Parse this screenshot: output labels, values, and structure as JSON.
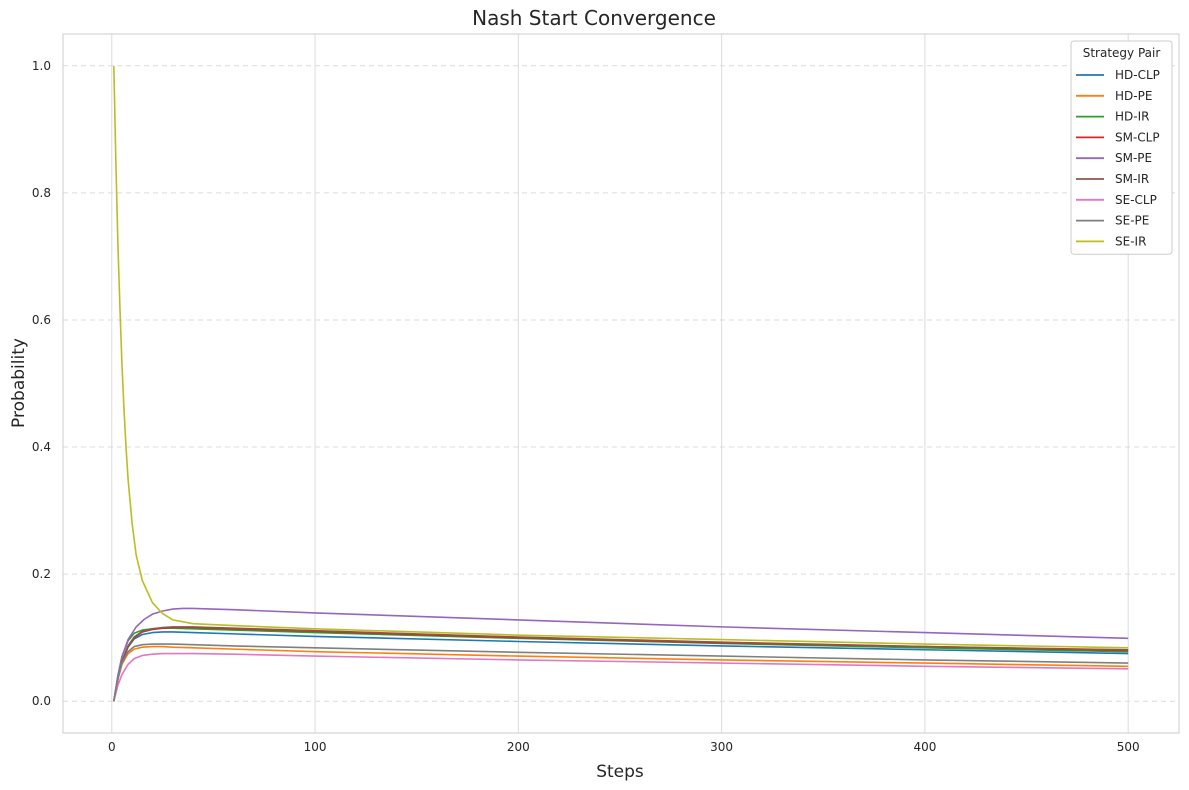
{
  "chart_data": {
    "type": "line",
    "title": "Nash Start Convergence",
    "xlabel": "Steps",
    "ylabel": "Probability",
    "xlim": [
      -24,
      525
    ],
    "ylim": [
      -0.05,
      1.05
    ],
    "xticks": [
      0,
      100,
      200,
      300,
      400,
      500
    ],
    "xtick_labels": [
      "0",
      "100",
      "200",
      "300",
      "400",
      "500"
    ],
    "yticks": [
      0.0,
      0.2,
      0.4,
      0.6,
      0.8,
      1.0
    ],
    "ytick_labels": [
      "0.0",
      "0.2",
      "0.4",
      "0.6",
      "0.8",
      "1.0"
    ],
    "grid": true,
    "legend": {
      "title": "Strategy Pair",
      "placement": "top-right"
    },
    "series": [
      {
        "name": "HD-CLP",
        "color": "#1f77b4",
        "points": [
          [
            1,
            0.0
          ],
          [
            3,
            0.035
          ],
          [
            5,
            0.062
          ],
          [
            8,
            0.085
          ],
          [
            11,
            0.098
          ],
          [
            15,
            0.105
          ],
          [
            20,
            0.108
          ],
          [
            25,
            0.109
          ],
          [
            30,
            0.109
          ],
          [
            40,
            0.108
          ],
          [
            60,
            0.106
          ],
          [
            100,
            0.102
          ],
          [
            200,
            0.094
          ],
          [
            300,
            0.087
          ],
          [
            400,
            0.081
          ],
          [
            500,
            0.075
          ]
        ]
      },
      {
        "name": "HD-PE",
        "color": "#ff7f0e",
        "points": [
          [
            1,
            0.0
          ],
          [
            3,
            0.035
          ],
          [
            5,
            0.058
          ],
          [
            8,
            0.075
          ],
          [
            11,
            0.082
          ],
          [
            15,
            0.085
          ],
          [
            20,
            0.086
          ],
          [
            25,
            0.086
          ],
          [
            30,
            0.085
          ],
          [
            40,
            0.084
          ],
          [
            60,
            0.082
          ],
          [
            100,
            0.078
          ],
          [
            200,
            0.071
          ],
          [
            300,
            0.065
          ],
          [
            400,
            0.06
          ],
          [
            500,
            0.055
          ]
        ]
      },
      {
        "name": "HD-IR",
        "color": "#2ca02c",
        "points": [
          [
            1,
            0.0
          ],
          [
            3,
            0.04
          ],
          [
            5,
            0.07
          ],
          [
            8,
            0.095
          ],
          [
            11,
            0.107
          ],
          [
            15,
            0.112
          ],
          [
            20,
            0.114
          ],
          [
            25,
            0.115
          ],
          [
            30,
            0.115
          ],
          [
            40,
            0.114
          ],
          [
            60,
            0.112
          ],
          [
            100,
            0.108
          ],
          [
            200,
            0.099
          ],
          [
            300,
            0.091
          ],
          [
            400,
            0.084
          ],
          [
            500,
            0.078
          ]
        ]
      },
      {
        "name": "SM-CLP",
        "color": "#d62728",
        "points": [
          [
            1,
            0.0
          ],
          [
            3,
            0.035
          ],
          [
            5,
            0.062
          ],
          [
            8,
            0.086
          ],
          [
            11,
            0.1
          ],
          [
            15,
            0.109
          ],
          [
            20,
            0.113
          ],
          [
            25,
            0.115
          ],
          [
            30,
            0.116
          ],
          [
            40,
            0.116
          ],
          [
            60,
            0.114
          ],
          [
            100,
            0.11
          ],
          [
            200,
            0.1
          ],
          [
            300,
            0.092
          ],
          [
            400,
            0.086
          ],
          [
            500,
            0.08
          ]
        ]
      },
      {
        "name": "SM-PE",
        "color": "#9467bd",
        "points": [
          [
            1,
            0.0
          ],
          [
            3,
            0.04
          ],
          [
            5,
            0.07
          ],
          [
            8,
            0.097
          ],
          [
            12,
            0.117
          ],
          [
            16,
            0.129
          ],
          [
            20,
            0.137
          ],
          [
            25,
            0.142
          ],
          [
            30,
            0.145
          ],
          [
            35,
            0.146
          ],
          [
            40,
            0.146
          ],
          [
            60,
            0.144
          ],
          [
            100,
            0.139
          ],
          [
            200,
            0.128
          ],
          [
            300,
            0.117
          ],
          [
            400,
            0.108
          ],
          [
            500,
            0.099
          ]
        ]
      },
      {
        "name": "SM-IR",
        "color": "#8c564b",
        "points": [
          [
            1,
            0.0
          ],
          [
            3,
            0.035
          ],
          [
            5,
            0.062
          ],
          [
            8,
            0.087
          ],
          [
            11,
            0.101
          ],
          [
            15,
            0.11
          ],
          [
            20,
            0.114
          ],
          [
            25,
            0.116
          ],
          [
            30,
            0.117
          ],
          [
            40,
            0.117
          ],
          [
            60,
            0.115
          ],
          [
            100,
            0.111
          ],
          [
            200,
            0.101
          ],
          [
            300,
            0.093
          ],
          [
            400,
            0.086
          ],
          [
            500,
            0.081
          ]
        ]
      },
      {
        "name": "SE-CLP",
        "color": "#e377c2",
        "points": [
          [
            1,
            0.0
          ],
          [
            3,
            0.025
          ],
          [
            5,
            0.042
          ],
          [
            8,
            0.058
          ],
          [
            11,
            0.067
          ],
          [
            15,
            0.072
          ],
          [
            20,
            0.074
          ],
          [
            25,
            0.075
          ],
          [
            30,
            0.075
          ],
          [
            40,
            0.075
          ],
          [
            60,
            0.074
          ],
          [
            100,
            0.071
          ],
          [
            200,
            0.065
          ],
          [
            300,
            0.06
          ],
          [
            400,
            0.055
          ],
          [
            500,
            0.051
          ]
        ]
      },
      {
        "name": "SE-PE",
        "color": "#7f7f7f",
        "points": [
          [
            1,
            0.0
          ],
          [
            3,
            0.035
          ],
          [
            5,
            0.06
          ],
          [
            8,
            0.078
          ],
          [
            11,
            0.086
          ],
          [
            15,
            0.089
          ],
          [
            20,
            0.09
          ],
          [
            25,
            0.09
          ],
          [
            30,
            0.09
          ],
          [
            40,
            0.089
          ],
          [
            60,
            0.087
          ],
          [
            100,
            0.084
          ],
          [
            200,
            0.077
          ],
          [
            300,
            0.071
          ],
          [
            400,
            0.065
          ],
          [
            500,
            0.06
          ]
        ]
      },
      {
        "name": "SE-IR",
        "color": "#bcbd22",
        "points": [
          [
            1,
            1.0
          ],
          [
            2,
            0.85
          ],
          [
            3,
            0.72
          ],
          [
            4,
            0.62
          ],
          [
            5,
            0.53
          ],
          [
            6,
            0.46
          ],
          [
            7,
            0.4
          ],
          [
            8,
            0.35
          ],
          [
            10,
            0.28
          ],
          [
            12,
            0.23
          ],
          [
            15,
            0.19
          ],
          [
            20,
            0.155
          ],
          [
            25,
            0.138
          ],
          [
            30,
            0.128
          ],
          [
            40,
            0.122
          ],
          [
            60,
            0.119
          ],
          [
            100,
            0.114
          ],
          [
            200,
            0.104
          ],
          [
            300,
            0.097
          ],
          [
            400,
            0.09
          ],
          [
            500,
            0.084
          ]
        ]
      }
    ]
  }
}
